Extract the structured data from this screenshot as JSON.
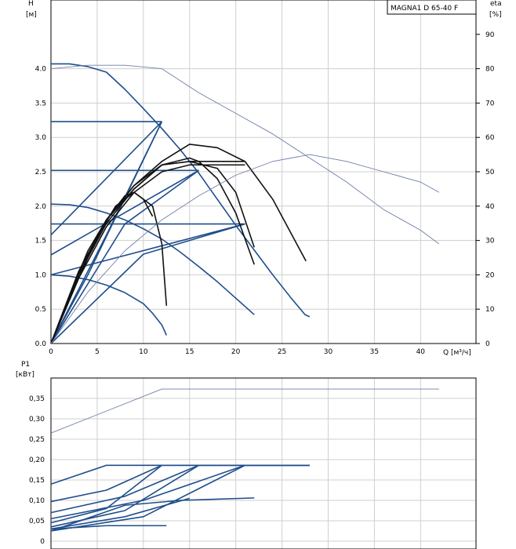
{
  "chart_data": [
    {
      "type": "line",
      "title_box": "MAGNA1 D 65-40 F",
      "xlabel": "Q [м³/ч]",
      "ylabel_left": [
        "H",
        "[м]"
      ],
      "ylabel_right": [
        "eta",
        "[%]"
      ],
      "xlim": [
        0,
        46
      ],
      "ylim": [
        0,
        5.0
      ],
      "ylim_right": [
        0,
        100
      ],
      "x_ticks": [
        0,
        5,
        10,
        15,
        20,
        25,
        30,
        35,
        40
      ],
      "y_ticks": [
        "0.0",
        "0.5",
        "1.0",
        "1.5",
        "2.0",
        "2.5",
        "3.0",
        "3.5",
        "4.0"
      ],
      "y_right_ticks": [
        0,
        10,
        20,
        30,
        40,
        50,
        60,
        70,
        80,
        90
      ],
      "grid": true,
      "colors": {
        "pump": "#1f4e8c",
        "efficiency": "#111111",
        "envelope": "#6f7fa6"
      },
      "series": [
        {
          "kind": "pump",
          "points": [
            [
              0,
              4.07
            ],
            [
              2,
              4.07
            ],
            [
              4,
              4.03
            ],
            [
              6,
              3.95
            ],
            [
              8,
              3.7
            ],
            [
              10,
              3.42
            ],
            [
              12,
              3.13
            ],
            [
              14,
              2.82
            ],
            [
              16,
              2.48
            ],
            [
              18,
              2.1
            ],
            [
              20,
              1.72
            ],
            [
              22,
              1.36
            ],
            [
              24,
              1.0
            ],
            [
              26,
              0.66
            ],
            [
              27.5,
              0.42
            ],
            [
              28,
              0.39
            ]
          ]
        },
        {
          "kind": "pump",
          "points": [
            [
              0,
              3.23
            ],
            [
              12,
              3.23
            ]
          ]
        },
        {
          "kind": "pump",
          "points": [
            [
              0,
              2.52
            ],
            [
              16,
              2.52
            ]
          ]
        },
        {
          "kind": "pump",
          "points": [
            [
              0,
              1.74
            ],
            [
              21,
              1.74
            ]
          ]
        },
        {
          "kind": "pump",
          "points": [
            [
              0,
              2.03
            ],
            [
              2,
              2.02
            ],
            [
              4,
              1.98
            ],
            [
              6,
              1.9
            ],
            [
              8,
              1.8
            ],
            [
              10,
              1.67
            ],
            [
              12,
              1.52
            ],
            [
              14,
              1.33
            ],
            [
              16,
              1.12
            ],
            [
              18,
              0.9
            ],
            [
              20,
              0.66
            ],
            [
              22,
              0.42
            ]
          ]
        },
        {
          "kind": "pump",
          "points": [
            [
              0,
              1.0
            ],
            [
              2,
              0.98
            ],
            [
              4,
              0.93
            ],
            [
              6,
              0.85
            ],
            [
              8,
              0.74
            ],
            [
              10,
              0.58
            ],
            [
              11,
              0.44
            ],
            [
              12,
              0.27
            ],
            [
              12.5,
              0.12
            ]
          ]
        },
        {
          "kind": "pump",
          "points": [
            [
              0,
              1.58
            ],
            [
              12,
              3.23
            ]
          ]
        },
        {
          "kind": "pump",
          "points": [
            [
              0,
              1.29
            ],
            [
              16,
              2.52
            ]
          ]
        },
        {
          "kind": "pump",
          "points": [
            [
              0,
              1.0
            ],
            [
              21,
              1.74
            ]
          ]
        },
        {
          "kind": "pump",
          "points": [
            [
              0,
              0
            ],
            [
              6,
              1.58
            ],
            [
              12,
              3.23
            ]
          ]
        },
        {
          "kind": "pump",
          "points": [
            [
              0,
              0
            ],
            [
              8,
              1.74
            ],
            [
              16,
              2.52
            ]
          ]
        },
        {
          "kind": "pump",
          "points": [
            [
              0,
              0
            ],
            [
              10,
              1.3
            ],
            [
              21,
              1.74
            ]
          ]
        },
        {
          "kind": "pump",
          "points": [
            [
              0,
              0
            ],
            [
              4,
              1.0
            ],
            [
              12,
              3.23
            ]
          ]
        },
        {
          "kind": "efficiency",
          "points": [
            [
              0,
              0
            ],
            [
              3,
              21
            ],
            [
              6,
              36
            ],
            [
              9,
              46
            ],
            [
              12,
              53
            ],
            [
              15,
              58
            ],
            [
              18,
              57
            ],
            [
              21,
              53
            ],
            [
              24,
              42
            ],
            [
              26,
              32
            ],
            [
              27.6,
              24
            ]
          ]
        },
        {
          "kind": "efficiency",
          "points": [
            [
              0,
              0
            ],
            [
              3,
              21
            ],
            [
              6,
              36
            ],
            [
              9,
              46
            ],
            [
              12,
              52
            ],
            [
              15,
              53
            ],
            [
              18,
              53
            ],
            [
              21,
              53
            ]
          ]
        },
        {
          "kind": "efficiency",
          "points": [
            [
              0,
              0
            ],
            [
              3,
              20
            ],
            [
              6,
              35
            ],
            [
              9,
              45
            ],
            [
              12,
              52
            ],
            [
              15,
              53
            ],
            [
              18,
              51
            ],
            [
              20,
              44
            ],
            [
              22,
              28
            ]
          ]
        },
        {
          "kind": "efficiency",
          "points": [
            [
              0,
              0
            ],
            [
              3,
              19
            ],
            [
              6,
              34
            ],
            [
              9,
              44
            ],
            [
              12,
              50
            ],
            [
              15,
              52
            ],
            [
              18,
              52
            ],
            [
              21,
              52
            ]
          ]
        },
        {
          "kind": "efficiency",
          "points": [
            [
              0,
              0
            ],
            [
              3,
              20
            ],
            [
              6,
              36
            ],
            [
              9,
              45
            ],
            [
              12,
              52
            ],
            [
              15,
              54
            ],
            [
              16,
              53
            ],
            [
              18,
              48
            ],
            [
              20,
              38
            ],
            [
              22,
              23
            ]
          ]
        },
        {
          "kind": "efficiency",
          "points": [
            [
              0,
              0
            ],
            [
              3,
              19
            ],
            [
              5,
              31
            ],
            [
              7,
              40
            ],
            [
              9,
              44
            ],
            [
              11,
              40
            ],
            [
              12,
              29
            ],
            [
              12.5,
              11
            ]
          ]
        },
        {
          "kind": "efficiency",
          "points": [
            [
              0,
              0
            ],
            [
              2,
              14
            ],
            [
              4,
              27
            ],
            [
              6,
              36
            ],
            [
              8,
              43
            ],
            [
              9,
              44
            ],
            [
              10,
              42
            ],
            [
              11,
              37
            ]
          ]
        },
        {
          "kind": "envelope",
          "points": [
            [
              0,
              80
            ],
            [
              4,
              81
            ],
            [
              8,
              81
            ],
            [
              12,
              80
            ],
            [
              16,
              73
            ],
            [
              20,
              67
            ],
            [
              24,
              61
            ],
            [
              28,
              54
            ],
            [
              32,
              47
            ],
            [
              36,
              39
            ],
            [
              40,
              33
            ],
            [
              42,
              29
            ]
          ]
        },
        {
          "kind": "envelope",
          "points": [
            [
              0,
              0
            ],
            [
              4,
              15
            ],
            [
              8,
              27
            ],
            [
              12,
              36
            ],
            [
              16,
              43
            ],
            [
              20,
              49
            ],
            [
              24,
              53
            ],
            [
              28,
              55
            ],
            [
              32,
              53
            ],
            [
              36,
              50
            ],
            [
              40,
              47
            ],
            [
              42,
              44
            ]
          ]
        }
      ]
    },
    {
      "type": "line",
      "ylabel": [
        "P1",
        "[кВт]"
      ],
      "xlim": [
        0,
        46
      ],
      "ylim": [
        0,
        0.4
      ],
      "y_ticks": [
        "0",
        "0,05",
        "0,10",
        "0,15",
        "0,20",
        "0,25",
        "0,30",
        "0,35"
      ],
      "y_values": [
        0,
        0.05,
        0.1,
        0.15,
        0.2,
        0.25,
        0.3,
        0.35
      ],
      "grid": true,
      "colors": {
        "power": "#1f4e8c",
        "envelope": "#6f7fa6"
      },
      "series": [
        {
          "kind": "envelope",
          "points": [
            [
              0,
              0.265
            ],
            [
              12,
              0.373
            ],
            [
              42,
              0.373
            ]
          ]
        },
        {
          "kind": "power",
          "points": [
            [
              0,
              0.14
            ],
            [
              6,
              0.186
            ],
            [
              28,
              0.186
            ]
          ]
        },
        {
          "kind": "power",
          "points": [
            [
              0,
              0.097
            ],
            [
              6,
              0.125
            ],
            [
              12,
              0.186
            ],
            [
              28,
              0.186
            ]
          ]
        },
        {
          "kind": "power",
          "points": [
            [
              0,
              0.07
            ],
            [
              8,
              0.11
            ],
            [
              16,
              0.186
            ],
            [
              28,
              0.186
            ]
          ]
        },
        {
          "kind": "power",
          "points": [
            [
              0,
              0.055
            ],
            [
              10,
              0.1
            ],
            [
              21,
              0.186
            ],
            [
              28,
              0.186
            ]
          ]
        },
        {
          "kind": "power",
          "points": [
            [
              0,
              0.045
            ],
            [
              6,
              0.08
            ],
            [
              12,
              0.186
            ]
          ]
        },
        {
          "kind": "power",
          "points": [
            [
              0,
              0.035
            ],
            [
              8,
              0.075
            ],
            [
              16,
              0.186
            ]
          ]
        },
        {
          "kind": "power",
          "points": [
            [
              0,
              0.03
            ],
            [
              8,
              0.06
            ],
            [
              15,
              0.105
            ]
          ]
        },
        {
          "kind": "power",
          "points": [
            [
              0,
              0.025
            ],
            [
              10,
              0.06
            ],
            [
              21,
              0.186
            ]
          ]
        },
        {
          "kind": "power",
          "points": [
            [
              0,
              0.025
            ],
            [
              8,
              0.088
            ],
            [
              14,
              0.1
            ],
            [
              22,
              0.106
            ]
          ]
        },
        {
          "kind": "power",
          "points": [
            [
              0,
              0.03
            ],
            [
              6,
              0.038
            ],
            [
              12.5,
              0.038
            ]
          ]
        }
      ]
    }
  ]
}
